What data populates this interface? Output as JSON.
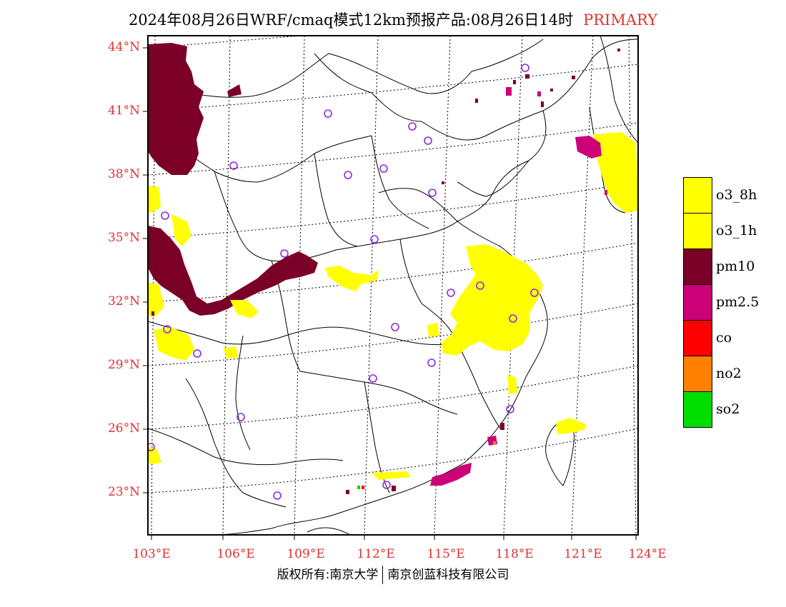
{
  "title": {
    "main": "2024年08月26日WRF/cmaq模式12km预报产品:08月26日14时",
    "tag": "PRIMARY"
  },
  "axes": {
    "lat_labels": [
      "44°N",
      "41°N",
      "38°N",
      "35°N",
      "32°N",
      "29°N",
      "26°N",
      "23°N"
    ],
    "lon_labels": [
      "103°E",
      "106°E",
      "109°E",
      "112°E",
      "115°E",
      "118°E",
      "121°E",
      "124°E"
    ]
  },
  "legend": [
    {
      "label": "o3_8h",
      "color": "#ffff00"
    },
    {
      "label": "o3_1h",
      "color": "#ffff00"
    },
    {
      "label": "pm10",
      "color": "#7a0028"
    },
    {
      "label": "pm2.5",
      "color": "#cc0077"
    },
    {
      "label": "co",
      "color": "#ff0000"
    },
    {
      "label": "no2",
      "color": "#ff8000"
    },
    {
      "label": "so2",
      "color": "#00dd00"
    }
  ],
  "footer": {
    "left": "版权所有:南京大学",
    "right": "南京创蓝科技有限公司"
  },
  "colors": {
    "label_red": "#e0312f",
    "station_marker": "#8a2be2"
  }
}
